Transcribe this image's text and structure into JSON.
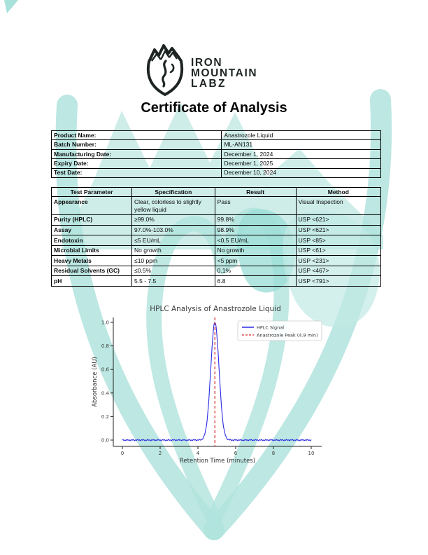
{
  "page": {
    "heading": "Certificate of Analysis"
  },
  "logo": {
    "lines": [
      "IRON",
      "MOUNTAIN",
      "LABZ"
    ]
  },
  "product_info": {
    "rows": [
      {
        "label": "Product Name:",
        "value": "Anastrozole Liquid"
      },
      {
        "label": "Batch Number:",
        "value": "ML-AN131"
      },
      {
        "label": "Manufacturing Date:",
        "value": "December 1, 2024"
      },
      {
        "label": "Expiry Date:",
        "value": "December 1, 2025"
      },
      {
        "label": "Test Date:",
        "value": "December 10, 2024"
      }
    ]
  },
  "test_table": {
    "headers": [
      "Test Parameter",
      "Specification",
      "Result",
      "Method"
    ],
    "rows": [
      {
        "parameter": "Appearance",
        "specification": "Clear, colorless to slightly yellow liquid",
        "result": "Pass",
        "method": "Visual Inspection"
      },
      {
        "parameter": "Purity (HPLC)",
        "specification": "≥99.0%",
        "result": "99.8%",
        "method": "USP <621>"
      },
      {
        "parameter": "Assay",
        "specification": "97.0%-103.0%",
        "result": "98.9%",
        "method": "USP <621>"
      },
      {
        "parameter": "Endotoxin",
        "specification": "≤5 EU/mL",
        "result": "<0.5 EU/mL",
        "method": "USP <85>"
      },
      {
        "parameter": "Microbial Limits",
        "specification": "No growth",
        "result": "No growth",
        "method": "USP <61>"
      },
      {
        "parameter": "Heavy Metals",
        "specification": "≤10 ppm",
        "result": "<5 ppm",
        "method": "USP <231>"
      },
      {
        "parameter": "Residual Solvents (GC)",
        "specification": "≤0.5%",
        "result": "0.1%",
        "method": "USP <467>"
      },
      {
        "parameter": "pH",
        "specification": "5.5 - 7.5",
        "result": "6.8",
        "method": "USP <791>"
      }
    ]
  },
  "chart_data": {
    "type": "line",
    "title": "HPLC Analysis of Anastrozole Liquid",
    "xlabel": "Retention Time (minutes)",
    "ylabel": "Absorbance (AU)",
    "xlim": [
      0,
      10.5
    ],
    "ylim": [
      -0.05,
      1.05
    ],
    "xticks": [
      0,
      2,
      4,
      6,
      8,
      10
    ],
    "yticks": [
      0.0,
      0.2,
      0.4,
      0.6,
      0.8,
      1.0
    ],
    "grid": false,
    "legend_position": "upper right",
    "series": [
      {
        "name": "HPLC Signal",
        "shape": "gaussian_peak",
        "color": "#2a2ae0",
        "peak_center": 4.9,
        "peak_height": 1.0,
        "peak_sigma": 0.22,
        "baseline": 0.0
      }
    ],
    "marker_line": {
      "name": "Anastrozole Peak (4.9 min)",
      "x": 4.9,
      "color": "#e0514f",
      "style": "dashed"
    }
  },
  "colors": {
    "watermark_teal_light": "#c2e9e4",
    "watermark_teal_mid": "#9adcd5",
    "logo_ink": "#1d2422",
    "signal_blue": "#2a2ae0",
    "marker_red": "#e0514f",
    "axis_gray": "#3a3a3a"
  }
}
